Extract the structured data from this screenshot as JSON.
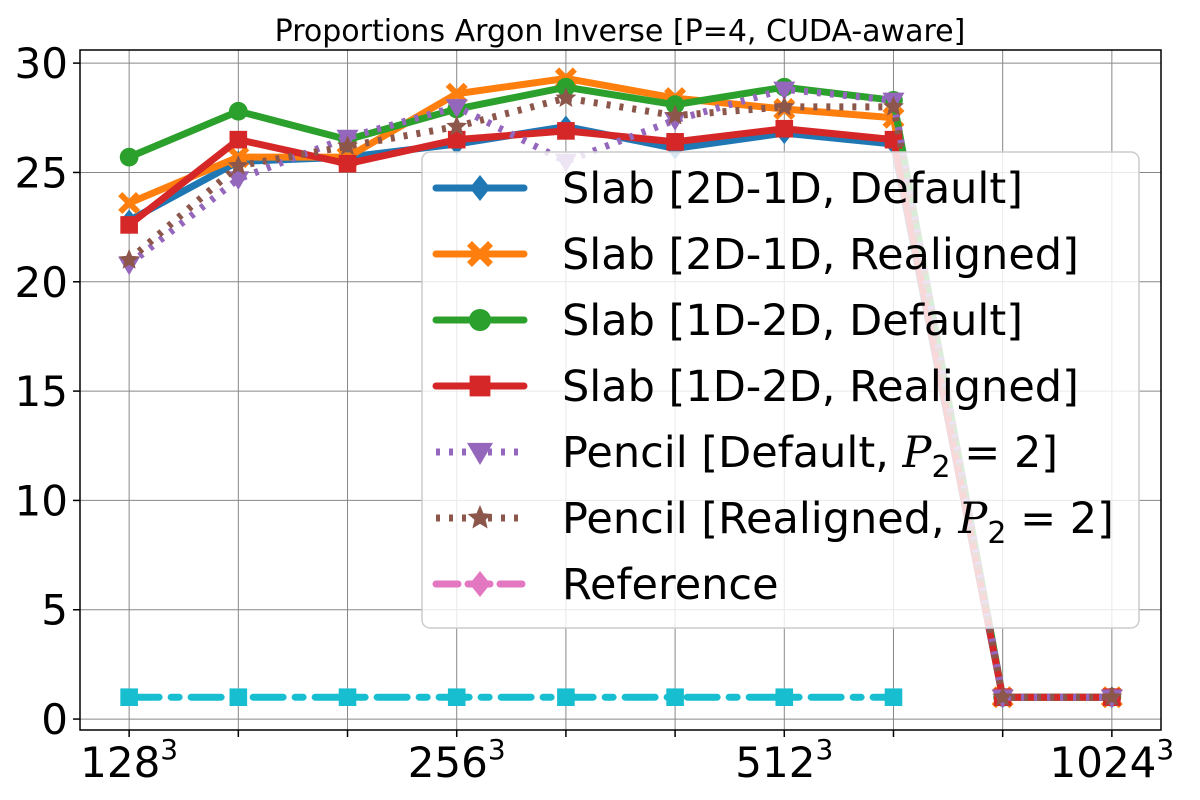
{
  "chart_data": {
    "type": "line",
    "title": "Proportions Argon Inverse [P=4, CUDA-aware]",
    "xlabel": "",
    "ylabel": "",
    "x": [
      0,
      1,
      2,
      3,
      4,
      5,
      6,
      7,
      8,
      9
    ],
    "x_tick_positions": [
      0,
      3,
      6,
      9
    ],
    "x_tick_labels": [
      {
        "base": "128",
        "exp": "3"
      },
      {
        "base": "256",
        "exp": "3"
      },
      {
        "base": "512",
        "exp": "3"
      },
      {
        "base": "1024",
        "exp": "3"
      }
    ],
    "ylim": [
      -0.5,
      30.6
    ],
    "xlim": [
      -0.45,
      9.45
    ],
    "y_ticks": [
      0,
      5,
      10,
      15,
      20,
      25,
      30
    ],
    "grid": true,
    "legend_position": "center-right",
    "series": [
      {
        "name": "Slab [2D-1D, Default]",
        "color": "#1f77b4",
        "style": "solid",
        "marker": "diamond",
        "values": [
          22.8,
          25.5,
          25.7,
          26.3,
          27.1,
          26.1,
          26.8,
          26.3,
          1.0,
          1.0
        ]
      },
      {
        "name": "Slab [2D-1D, Realigned]",
        "color": "#ff7f0e",
        "style": "solid",
        "marker": "x",
        "values": [
          23.6,
          25.7,
          25.7,
          28.6,
          29.3,
          28.4,
          27.9,
          27.5,
          1.0,
          1.0
        ]
      },
      {
        "name": "Slab [1D-2D, Default]",
        "color": "#2ca02c",
        "style": "solid",
        "marker": "circle",
        "values": [
          25.7,
          27.8,
          26.5,
          27.9,
          28.9,
          28.1,
          28.9,
          28.3,
          1.0,
          1.0
        ]
      },
      {
        "name": "Slab [1D-2D, Realigned]",
        "color": "#d62728",
        "style": "solid",
        "marker": "square",
        "values": [
          22.6,
          26.5,
          25.4,
          26.5,
          26.9,
          26.4,
          27.0,
          26.5,
          1.0,
          1.0
        ]
      },
      {
        "name_prefix": "Pencil [Default, ",
        "name_math": "P",
        "name_sub": "2",
        "name_suffix": " = 2]",
        "color": "#9467bd",
        "style": "dotted",
        "marker": "triangle-down",
        "values": [
          20.8,
          24.7,
          26.6,
          28.0,
          25.5,
          27.4,
          28.8,
          28.3,
          1.0,
          1.0
        ]
      },
      {
        "name_prefix": "Pencil [Realigned, ",
        "name_math": "P",
        "name_sub": "2",
        "name_suffix": " = 2]",
        "color": "#8c564b",
        "style": "dotted",
        "marker": "star",
        "values": [
          21.0,
          25.3,
          26.2,
          27.1,
          28.4,
          27.6,
          28.0,
          28.0,
          1.0,
          1.0
        ]
      },
      {
        "name": "Reference",
        "color": "#e377c2",
        "style": "dashed",
        "marker": "diamond",
        "values": [
          1.0,
          1.0,
          1.0,
          1.0,
          1.0,
          1.0,
          1.0,
          1.0,
          1.0,
          1.0
        ],
        "hidden_in_plot": true
      },
      {
        "name": "",
        "color": "#17becf",
        "style": "dashdot",
        "marker": "square",
        "in_legend": false,
        "values": [
          1.0,
          1.0,
          1.0,
          1.0,
          1.0,
          1.0,
          1.0,
          1.0,
          null,
          null
        ]
      }
    ]
  }
}
